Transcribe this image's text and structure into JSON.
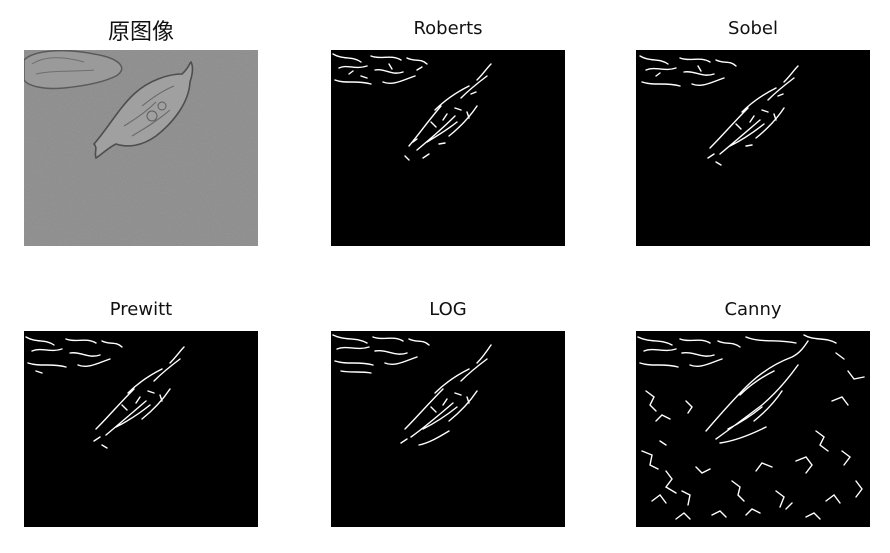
{
  "figure": {
    "panels": [
      {
        "id": "original",
        "title": "原图像",
        "image": "original-grayscale-cell"
      },
      {
        "id": "roberts",
        "title": "Roberts",
        "image": "roberts-edge-map"
      },
      {
        "id": "sobel",
        "title": "Sobel",
        "image": "sobel-edge-map"
      },
      {
        "id": "prewitt",
        "title": "Prewitt",
        "image": "prewitt-edge-map"
      },
      {
        "id": "log",
        "title": "LOG",
        "image": "log-edge-map"
      },
      {
        "id": "canny",
        "title": "Canny",
        "image": "canny-edge-map"
      }
    ]
  },
  "colors": {
    "background": "#ffffff",
    "gray_field": "#8c8c8c",
    "edge_background": "#000000",
    "edge_line": "#ffffff"
  }
}
